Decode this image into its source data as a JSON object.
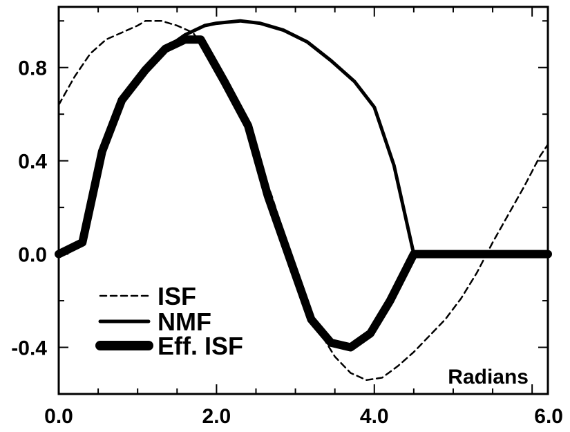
{
  "chart_data": {
    "type": "line",
    "xlabel": "Radians",
    "ylabel": "",
    "xlim": [
      0,
      6.2
    ],
    "ylim": [
      -0.6,
      1.06
    ],
    "x_ticks": [
      0.0,
      2.0,
      4.0,
      6.0
    ],
    "x_tick_labels": [
      "0.0",
      "2.0",
      "4.0",
      "6.0"
    ],
    "y_ticks": [
      -0.4,
      0.0,
      0.4,
      0.8
    ],
    "y_tick_labels": [
      "-0.4",
      "0.0",
      "0.4",
      "0.8"
    ],
    "grid": false,
    "legend_position": "bottom-left",
    "series": [
      {
        "name": "ISF",
        "style": "dashed",
        "color": "#000000",
        "points": [
          [
            0.0,
            0.64
          ],
          [
            0.2,
            0.76
          ],
          [
            0.4,
            0.86
          ],
          [
            0.6,
            0.92
          ],
          [
            0.8,
            0.95
          ],
          [
            1.0,
            0.98
          ],
          [
            1.1,
            1.0
          ],
          [
            1.3,
            1.0
          ],
          [
            1.5,
            0.98
          ],
          [
            1.7,
            0.95
          ],
          [
            1.9,
            0.86
          ],
          [
            2.1,
            0.74
          ],
          [
            2.3,
            0.6
          ],
          [
            2.5,
            0.44
          ],
          [
            2.7,
            0.25
          ],
          [
            2.9,
            0.04
          ],
          [
            3.1,
            -0.16
          ],
          [
            3.3,
            -0.33
          ],
          [
            3.5,
            -0.44
          ],
          [
            3.7,
            -0.51
          ],
          [
            3.9,
            -0.54
          ],
          [
            4.1,
            -0.53
          ],
          [
            4.3,
            -0.48
          ],
          [
            4.5,
            -0.42
          ],
          [
            4.7,
            -0.35
          ],
          [
            4.9,
            -0.28
          ],
          [
            5.1,
            -0.19
          ],
          [
            5.3,
            -0.08
          ],
          [
            5.5,
            0.05
          ],
          [
            5.7,
            0.17
          ],
          [
            5.9,
            0.29
          ],
          [
            6.1,
            0.42
          ],
          [
            6.2,
            0.47
          ]
        ]
      },
      {
        "name": "NMF",
        "style": "solid",
        "color": "#000000",
        "points": [
          [
            0.0,
            0.0
          ],
          [
            0.3,
            0.05
          ],
          [
            0.55,
            0.44
          ],
          [
            0.8,
            0.66
          ],
          [
            1.1,
            0.79
          ],
          [
            1.35,
            0.88
          ],
          [
            1.6,
            0.94
          ],
          [
            1.85,
            0.98
          ],
          [
            2.0,
            0.99
          ],
          [
            2.3,
            1.0
          ],
          [
            2.55,
            0.99
          ],
          [
            2.85,
            0.96
          ],
          [
            3.15,
            0.91
          ],
          [
            3.45,
            0.83
          ],
          [
            3.75,
            0.74
          ],
          [
            4.0,
            0.63
          ],
          [
            4.25,
            0.38
          ],
          [
            4.5,
            0.0
          ],
          [
            6.2,
            0.0
          ]
        ]
      },
      {
        "name": "Eff. ISF",
        "style": "thick",
        "color": "#000000",
        "points": [
          [
            0.0,
            0.0
          ],
          [
            0.3,
            0.05
          ],
          [
            0.55,
            0.44
          ],
          [
            0.8,
            0.66
          ],
          [
            1.1,
            0.79
          ],
          [
            1.35,
            0.88
          ],
          [
            1.6,
            0.92
          ],
          [
            1.8,
            0.92
          ],
          [
            2.1,
            0.74
          ],
          [
            2.4,
            0.55
          ],
          [
            2.65,
            0.25
          ],
          [
            2.95,
            -0.04
          ],
          [
            3.2,
            -0.28
          ],
          [
            3.45,
            -0.38
          ],
          [
            3.7,
            -0.4
          ],
          [
            3.95,
            -0.34
          ],
          [
            4.2,
            -0.2
          ],
          [
            4.5,
            0.0
          ],
          [
            6.2,
            0.0
          ]
        ]
      }
    ]
  }
}
